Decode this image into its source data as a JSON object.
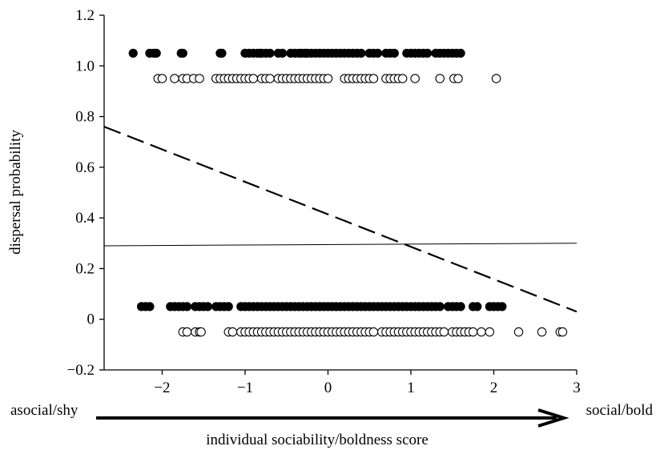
{
  "chart_data": {
    "type": "scatter",
    "title": "",
    "xlabel": "individual sociability/boldness score",
    "ylabel": "dispersal probability",
    "xlim": [
      -2.7,
      3
    ],
    "ylim": [
      -0.2,
      1.2
    ],
    "x_ticks": [
      -2,
      -1,
      0,
      1,
      2,
      3
    ],
    "x_tick_labels": [
      "−2",
      "−1",
      "0",
      "1",
      "2",
      "3"
    ],
    "y_ticks": [
      -0.2,
      0,
      0.2,
      0.4,
      0.6,
      0.8,
      1.0,
      1.2
    ],
    "y_tick_labels": [
      "−0.2",
      "0",
      "0.2",
      "0.4",
      "0.6",
      "0.8",
      "1.0",
      "1.2"
    ],
    "grid": false,
    "axis_annotation": {
      "left": "asocial/shy",
      "right": "social/bold"
    },
    "point_groups": [
      {
        "marker": "filled",
        "y": 1.05,
        "x": [
          -2.35,
          -2.15,
          -2.1,
          -2.07,
          -1.77,
          -1.75,
          -1.3,
          -1.28,
          -1.0,
          -0.95,
          -0.9,
          -0.85,
          -0.82,
          -0.8,
          -0.75,
          -0.7,
          -0.6,
          -0.55,
          -0.45,
          -0.4,
          -0.35,
          -0.32,
          -0.28,
          -0.25,
          -0.2,
          -0.15,
          -0.1,
          -0.05,
          0.0,
          0.05,
          0.1,
          0.15,
          0.2,
          0.25,
          0.3,
          0.35,
          0.4,
          0.5,
          0.55,
          0.6,
          0.7,
          0.75,
          0.8,
          0.95,
          1.0,
          1.05,
          1.1,
          1.15,
          1.2,
          1.3,
          1.35,
          1.4,
          1.45,
          1.5,
          1.55,
          1.6
        ]
      },
      {
        "marker": "open",
        "y": 0.95,
        "x": [
          -2.05,
          -2.0,
          -1.85,
          -1.75,
          -1.7,
          -1.62,
          -1.55,
          -1.35,
          -1.3,
          -1.25,
          -1.2,
          -1.15,
          -1.1,
          -1.05,
          -1.0,
          -0.95,
          -0.9,
          -0.8,
          -0.75,
          -0.7,
          -0.6,
          -0.55,
          -0.5,
          -0.45,
          -0.4,
          -0.35,
          -0.3,
          -0.25,
          -0.2,
          -0.15,
          -0.1,
          -0.05,
          0.0,
          0.2,
          0.25,
          0.3,
          0.35,
          0.4,
          0.45,
          0.5,
          0.55,
          0.7,
          0.75,
          0.8,
          0.85,
          0.9,
          1.05,
          1.35,
          1.52,
          1.57,
          2.03
        ]
      },
      {
        "marker": "filled",
        "y": 0.05,
        "x": [
          -2.25,
          -2.2,
          -2.15,
          -1.9,
          -1.85,
          -1.8,
          -1.75,
          -1.7,
          -1.6,
          -1.55,
          -1.5,
          -1.45,
          -1.35,
          -1.3,
          -1.25,
          -1.2,
          -1.05,
          -1.0,
          -0.95,
          -0.9,
          -0.85,
          -0.8,
          -0.75,
          -0.7,
          -0.65,
          -0.6,
          -0.55,
          -0.5,
          -0.45,
          -0.4,
          -0.35,
          -0.3,
          -0.25,
          -0.2,
          -0.15,
          -0.1,
          -0.05,
          0.0,
          0.05,
          0.1,
          0.15,
          0.2,
          0.25,
          0.3,
          0.35,
          0.4,
          0.45,
          0.5,
          0.55,
          0.6,
          0.65,
          0.7,
          0.75,
          0.8,
          0.85,
          0.9,
          0.95,
          1.0,
          1.05,
          1.1,
          1.15,
          1.2,
          1.25,
          1.3,
          1.35,
          1.45,
          1.5,
          1.55,
          1.6,
          1.75,
          1.8,
          1.95,
          2.0,
          2.05,
          2.1
        ]
      },
      {
        "marker": "open",
        "y": -0.05,
        "x": [
          -1.75,
          -1.7,
          -1.6,
          -1.55,
          -1.53,
          -1.2,
          -1.15,
          -1.05,
          -1.0,
          -0.95,
          -0.9,
          -0.85,
          -0.8,
          -0.75,
          -0.7,
          -0.65,
          -0.6,
          -0.55,
          -0.5,
          -0.45,
          -0.4,
          -0.35,
          -0.3,
          -0.25,
          -0.2,
          -0.15,
          -0.1,
          -0.05,
          0.0,
          0.05,
          0.1,
          0.15,
          0.2,
          0.25,
          0.3,
          0.35,
          0.4,
          0.45,
          0.5,
          0.55,
          0.65,
          0.7,
          0.75,
          0.8,
          0.85,
          0.9,
          0.95,
          1.0,
          1.05,
          1.1,
          1.15,
          1.2,
          1.25,
          1.3,
          1.35,
          1.4,
          1.5,
          1.55,
          1.6,
          1.65,
          1.7,
          1.75,
          1.85,
          1.95,
          2.3,
          2.58,
          2.8,
          2.83
        ]
      }
    ],
    "lines": [
      {
        "style": "dashed",
        "x": [
          -2.7,
          3.0
        ],
        "y": [
          0.76,
          0.03
        ]
      },
      {
        "style": "solid",
        "x": [
          -2.7,
          3.0
        ],
        "y": [
          0.29,
          0.3
        ]
      }
    ]
  }
}
